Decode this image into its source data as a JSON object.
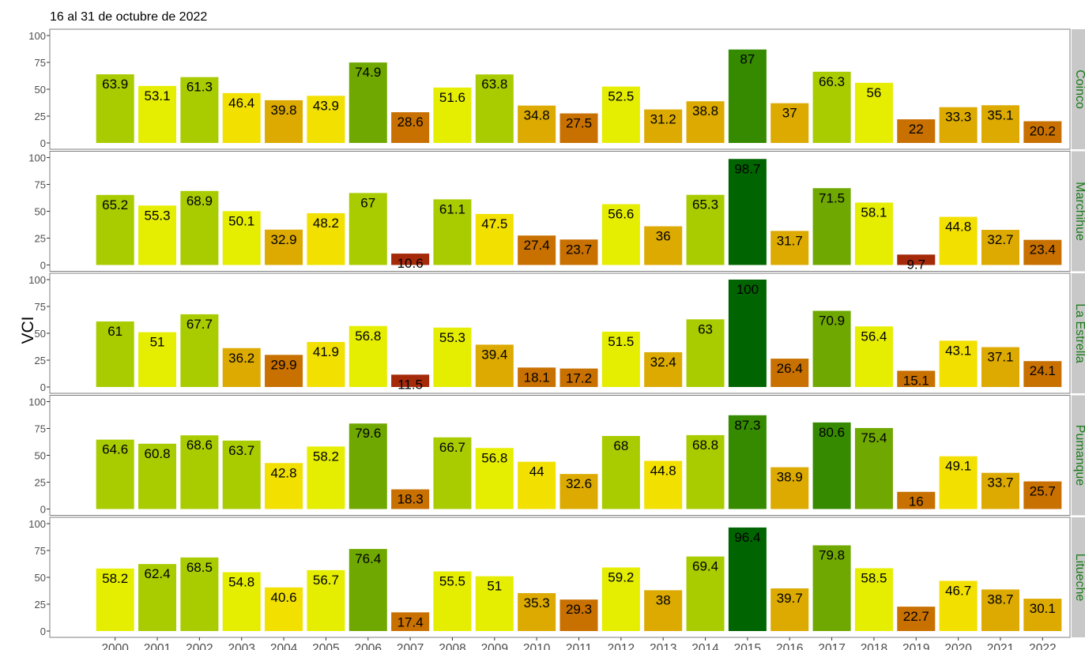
{
  "chart_data": {
    "type": "bar",
    "subtitle": "16 al 31 de octubre de 2022",
    "ylabel": "VCI",
    "ylim": [
      0,
      100
    ],
    "yticks": [
      0,
      25,
      50,
      75,
      100
    ],
    "categories": [
      "2000",
      "2001",
      "2002",
      "2003",
      "2004",
      "2005",
      "2006",
      "2007",
      "2008",
      "2009",
      "2010",
      "2011",
      "2012",
      "2013",
      "2014",
      "2015",
      "2016",
      "2017",
      "2018",
      "2019",
      "2020",
      "2021",
      "2022"
    ],
    "panels": [
      {
        "name": "Coinco",
        "values": [
          63.9,
          53.1,
          61.3,
          46.4,
          39.8,
          43.9,
          74.9,
          28.6,
          51.6,
          63.8,
          34.8,
          27.5,
          52.5,
          31.2,
          38.8,
          87,
          37,
          66.3,
          56,
          22,
          33.3,
          35.1,
          20.2
        ]
      },
      {
        "name": "Marchihue",
        "values": [
          65.2,
          55.3,
          68.9,
          50.1,
          32.9,
          48.2,
          67,
          10.6,
          61.1,
          47.5,
          27.4,
          23.7,
          56.6,
          36,
          65.3,
          98.7,
          31.7,
          71.5,
          58.1,
          9.7,
          44.8,
          32.7,
          23.4
        ]
      },
      {
        "name": "La Estrella",
        "values": [
          61,
          51,
          67.7,
          36.2,
          29.9,
          41.9,
          56.8,
          11.5,
          55.3,
          39.4,
          18.1,
          17.2,
          51.5,
          32.4,
          63,
          100,
          26.4,
          70.9,
          56.4,
          15.1,
          43.1,
          37.1,
          24.1
        ]
      },
      {
        "name": "Pumanque",
        "values": [
          64.6,
          60.8,
          68.6,
          63.7,
          42.8,
          58.2,
          79.6,
          18.3,
          66.7,
          56.8,
          44,
          32.6,
          68,
          44.8,
          68.8,
          87.3,
          38.9,
          80.6,
          75.4,
          16,
          49.1,
          33.7,
          25.7
        ]
      },
      {
        "name": "Litueche",
        "values": [
          58.2,
          62.4,
          68.5,
          54.8,
          40.6,
          56.7,
          76.4,
          17.4,
          55.5,
          51,
          35.3,
          29.3,
          59.2,
          38,
          69.4,
          96.4,
          39.7,
          79.8,
          58.5,
          22.7,
          46.7,
          38.7,
          30.1
        ]
      }
    ],
    "color_scale": [
      {
        "min": 0,
        "max": 15,
        "color": "#a52a0a"
      },
      {
        "min": 15,
        "max": 30,
        "color": "#c87000"
      },
      {
        "min": 30,
        "max": 40,
        "color": "#dcaa00"
      },
      {
        "min": 40,
        "max": 50,
        "color": "#f2e000"
      },
      {
        "min": 50,
        "max": 60,
        "color": "#e5ee00"
      },
      {
        "min": 60,
        "max": 70,
        "color": "#a8cc00"
      },
      {
        "min": 70,
        "max": 80,
        "color": "#6fa800"
      },
      {
        "min": 80,
        "max": 90,
        "color": "#358a00"
      },
      {
        "min": 90,
        "max": 101,
        "color": "#006400"
      }
    ],
    "grid": false,
    "strip_color": "#c8c8c8",
    "strip_text_color": "#1a7a1a"
  }
}
